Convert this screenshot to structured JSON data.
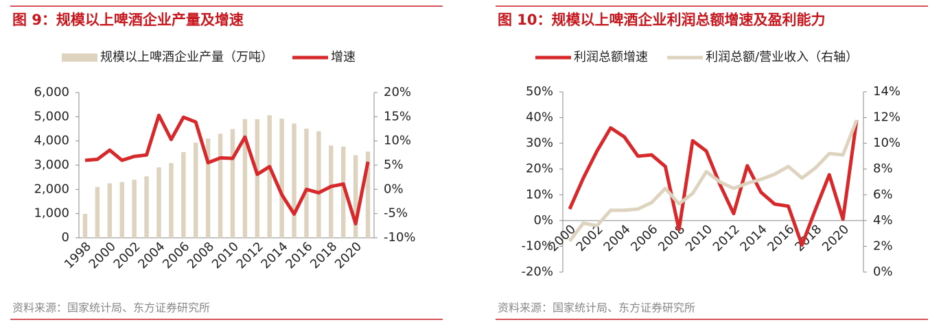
{
  "chart_data": [
    {
      "type": "bar",
      "title": "图 9：规模以上啤酒企业产量及增速",
      "source": "资料来源：国家统计局、东方证券研究所",
      "categories": [
        "1998",
        null,
        "2000",
        null,
        "2002",
        null,
        "2004",
        null,
        "2006",
        null,
        "2008",
        null,
        "2010",
        null,
        "2012",
        null,
        "2014",
        null,
        "2016",
        null,
        "2018",
        null,
        "2020",
        null
      ],
      "series": [
        {
          "name": "规模以上啤酒企业产量（万吨）",
          "type": "bar",
          "color": "#ddd3bf",
          "values": [
            990,
            2100,
            2250,
            2300,
            2400,
            2540,
            2910,
            3090,
            3540,
            3930,
            4100,
            4300,
            4490,
            4900,
            4900,
            5060,
            4920,
            4720,
            4510,
            4400,
            3810,
            3770,
            3410,
            3560
          ]
        },
        {
          "name": "增速",
          "type": "line",
          "axis": "y2",
          "color": "#d7282b",
          "values": [
            6.0,
            6.2,
            8.1,
            6.0,
            6.8,
            7.1,
            15.3,
            10.3,
            14.9,
            13.9,
            5.5,
            6.5,
            6.4,
            10.8,
            3.1,
            4.7,
            -1.1,
            -5.1,
            0,
            -0.7,
            0.6,
            1.1,
            -7.1,
            5.7
          ]
        }
      ],
      "ylim": [
        0,
        6000
      ],
      "yticks": [
        0,
        {
          "value": 1000,
          "label": "1,000"
        },
        {
          "value": 2000,
          "label": "2,000"
        },
        {
          "value": 3000,
          "label": "3,000"
        },
        {
          "value": 4000,
          "label": "4,000"
        },
        {
          "value": 5000,
          "label": "5,000"
        },
        {
          "value": 6000,
          "label": "6,000"
        }
      ],
      "y2lim": [
        -10,
        20
      ],
      "y2ticks": [
        {
          "value": -10,
          "label": "-10%"
        },
        {
          "value": -5,
          "label": "-5%"
        },
        {
          "value": 0,
          "label": "0%"
        },
        {
          "value": 5,
          "label": "5%"
        },
        {
          "value": 10,
          "label": "10%"
        },
        {
          "value": 15,
          "label": "15%"
        },
        {
          "value": 20,
          "label": "20%"
        }
      ]
    },
    {
      "type": "line",
      "title": "图 10：规模以上啤酒企业利润总额增速及盈利能力",
      "source": "资料来源：国家统计局、东方证券研究所",
      "categories": [
        "2000",
        null,
        "2002",
        null,
        "2004",
        null,
        "2006",
        null,
        "2008",
        null,
        "2010",
        null,
        "2012",
        null,
        "2014",
        null,
        "2016",
        null,
        "2018",
        null,
        "2020",
        null
      ],
      "series": [
        {
          "name": "利润总额增速",
          "type": "line",
          "color": "#d7282b",
          "values": [
            4.5,
            16.5,
            27,
            36,
            32.5,
            25,
            25.5,
            21,
            -3.5,
            31,
            27,
            14,
            2.7,
            21.3,
            11,
            6.4,
            5.6,
            -9.5,
            4.5,
            17.8,
            0.5,
            39
          ]
        },
        {
          "name": "利润总额/营业收入（右轴）",
          "type": "line",
          "axis": "y2",
          "color": "#ddd3bf",
          "values": [
            2.4,
            3.8,
            3.6,
            4.8,
            4.8,
            4.9,
            5.4,
            6.5,
            5.3,
            6.1,
            7.8,
            7.0,
            6.5,
            6.9,
            7.2,
            7.6,
            8.2,
            7.3,
            8.1,
            9.2,
            9.1,
            11.8
          ]
        }
      ],
      "ylim": [
        -20,
        50
      ],
      "yticks": [
        {
          "value": -20,
          "label": "-20%"
        },
        {
          "value": -10,
          "label": "-10%"
        },
        {
          "value": 0,
          "label": "0%"
        },
        {
          "value": 10,
          "label": "10%"
        },
        {
          "value": 20,
          "label": "20%"
        },
        {
          "value": 30,
          "label": "30%"
        },
        {
          "value": 40,
          "label": "40%"
        },
        {
          "value": 50,
          "label": "50%"
        }
      ],
      "y2lim": [
        0,
        14
      ],
      "y2ticks": [
        {
          "value": 0,
          "label": "0%"
        },
        {
          "value": 2,
          "label": "2%"
        },
        {
          "value": 4,
          "label": "4%"
        },
        {
          "value": 6,
          "label": "6%"
        },
        {
          "value": 8,
          "label": "8%"
        },
        {
          "value": 10,
          "label": "10%"
        },
        {
          "value": 12,
          "label": "12%"
        },
        {
          "value": 14,
          "label": "14%"
        }
      ]
    }
  ]
}
